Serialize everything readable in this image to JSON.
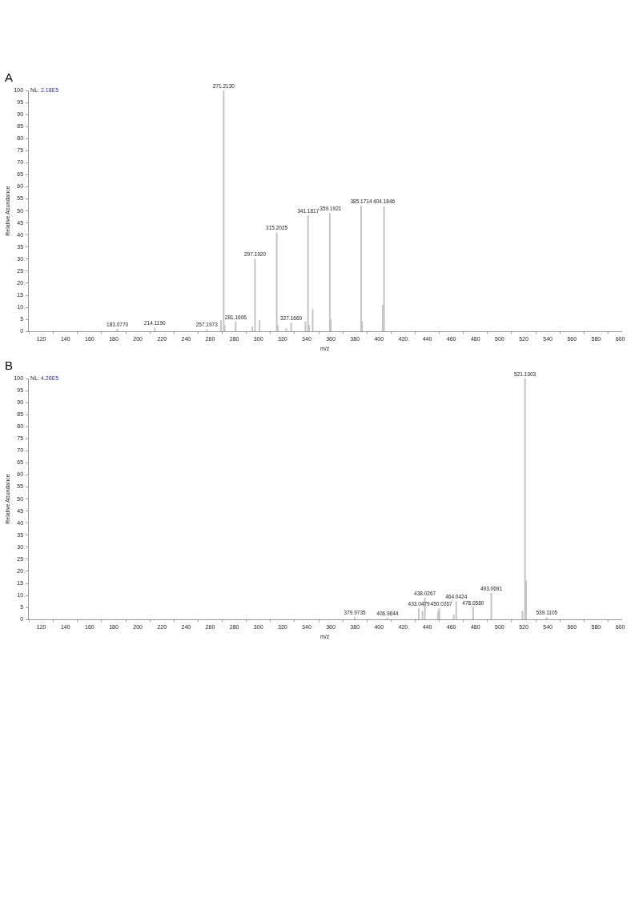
{
  "chart_data": [
    {
      "type": "bar",
      "title": "A",
      "xlabel": "m/z",
      "ylabel": "Relative Abundance",
      "annotations": [
        "NL: 2.18E5",
        {
          "text": "183.0770",
          "x": 183.077,
          "y": 1
        },
        {
          "text": "214.1190",
          "x": 214.119,
          "y": 1.5
        },
        {
          "text": "257.1973",
          "x": 257.1973,
          "y": 0.8
        },
        {
          "text": "271.2130",
          "x": 271.213,
          "y": 100
        },
        {
          "text": "281.1606",
          "x": 281.1606,
          "y": 4
        },
        {
          "text": "297.1920",
          "x": 297.192,
          "y": 30
        },
        {
          "text": "315.2025",
          "x": 315.2025,
          "y": 41
        },
        {
          "text": "327.1660",
          "x": 327.166,
          "y": 3.5
        },
        {
          "text": "341.1817",
          "x": 341.1817,
          "y": 48
        },
        {
          "text": "359.1921",
          "x": 359.1921,
          "y": 49
        },
        {
          "text": "385.1714",
          "x": 385.1714,
          "y": 52
        },
        {
          "text": "404.1846",
          "x": 404.1846,
          "y": 52
        }
      ],
      "series": [
        {
          "color": "#c4c4c4",
          "x": [
            183.077,
            214.119,
            257.1973,
            269,
            271.213,
            272,
            281.1606,
            295,
            297.192,
            301,
            315.2025,
            316,
            323,
            327.166,
            339,
            341.1817,
            342,
            345,
            359.1921,
            360,
            385.1714,
            386,
            403,
            404.1846
          ],
          "values": [
            1,
            1.5,
            0.8,
            4.5,
            100,
            2.5,
            4,
            2,
            30,
            4.5,
            41,
            2.5,
            1.2,
            3.5,
            4,
            48,
            2.5,
            9,
            49,
            5,
            52,
            4,
            11,
            52
          ]
        }
      ],
      "xlim": [
        109,
        601
      ],
      "xticks": [
        120,
        140,
        160,
        180,
        200,
        220,
        240,
        260,
        280,
        300,
        320,
        340,
        360,
        380,
        400,
        420,
        440,
        460,
        480,
        500,
        520,
        540,
        560,
        580,
        600
      ],
      "ylim": [
        0,
        100
      ],
      "yticks": [
        0,
        5,
        10,
        15,
        20,
        25,
        30,
        35,
        40,
        45,
        50,
        55,
        60,
        65,
        70,
        75,
        80,
        85,
        90,
        95,
        100
      ],
      "grid": false,
      "legend": false
    },
    {
      "type": "bar",
      "title": "B",
      "xlabel": "m/z",
      "ylabel": "Relative Abundance",
      "annotations": [
        "NL: 4.26E5",
        {
          "text": "379.9735",
          "x": 379.9735,
          "y": 1
        },
        {
          "text": "406.9844",
          "x": 406.9844,
          "y": 0.5
        },
        {
          "text": "433.0479",
          "x": 433.0479,
          "y": 4.5
        },
        {
          "text": "438.0267",
          "x": 438.0267,
          "y": 9
        },
        {
          "text": "450.0267",
          "x": 450.0267,
          "y": 4.5
        },
        {
          "text": "464.0424",
          "x": 464.0424,
          "y": 7.5
        },
        {
          "text": "478.0580",
          "x": 478.058,
          "y": 5
        },
        {
          "text": "493.0691",
          "x": 493.0691,
          "y": 11
        },
        {
          "text": "521.1003",
          "x": 521.1003,
          "y": 100
        },
        {
          "text": "539.1105",
          "x": 539.1105,
          "y": 0.8
        }
      ],
      "series": [
        {
          "color": "#c4c4c4",
          "x": [
            379.9735,
            406.9844,
            433.0479,
            436,
            438.0267,
            449,
            450.0267,
            462,
            464.0424,
            478.058,
            493.0691,
            519,
            521.1003,
            522,
            539.1105
          ],
          "values": [
            1,
            0.5,
            4.5,
            3.5,
            9,
            3.5,
            4.5,
            2,
            7.5,
            5,
            11,
            3.5,
            100,
            16,
            0.8
          ]
        }
      ],
      "xlim": [
        109,
        601
      ],
      "xticks": [
        120,
        140,
        160,
        180,
        200,
        220,
        240,
        260,
        280,
        300,
        320,
        340,
        360,
        380,
        400,
        420,
        440,
        460,
        480,
        500,
        520,
        540,
        560,
        580,
        600
      ],
      "ylim": [
        0,
        100
      ],
      "yticks": [
        0,
        5,
        10,
        15,
        20,
        25,
        30,
        35,
        40,
        45,
        50,
        55,
        60,
        65,
        70,
        75,
        80,
        85,
        90,
        95,
        100
      ],
      "grid": false,
      "legend": false
    }
  ]
}
